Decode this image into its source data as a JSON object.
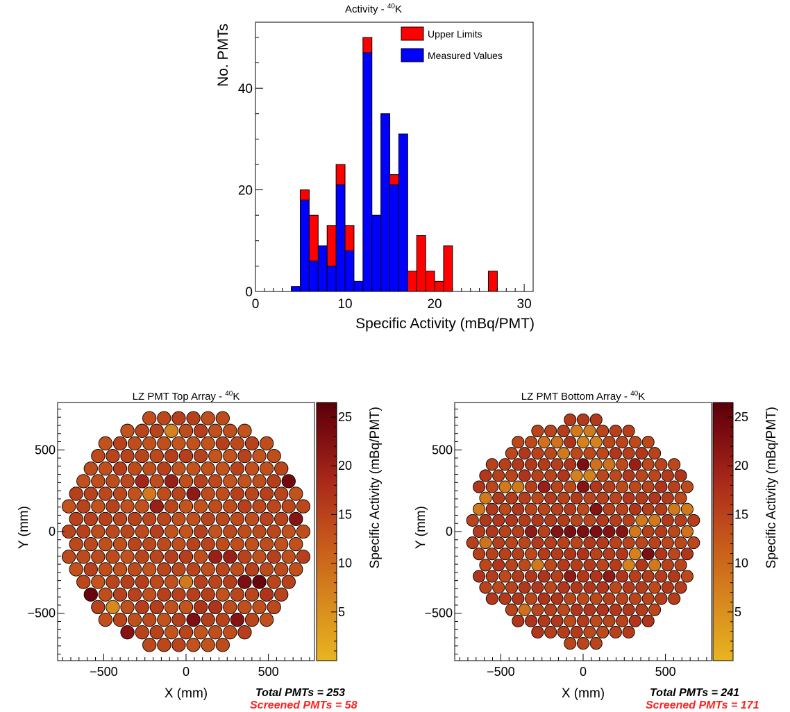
{
  "charts": [
    {
      "type": "bar",
      "stacked": true,
      "title": "Activity - ",
      "title_isotope_mass": "40",
      "title_isotope_symbol": "K",
      "xlabel": "Specific Activity (mBq/PMT)",
      "ylabel": "No. PMTs",
      "xlim": [
        0,
        31
      ],
      "ylim": [
        0,
        53
      ],
      "xticks": [
        0,
        10,
        20,
        30
      ],
      "yticks": [
        0,
        20,
        40
      ],
      "bin_width": 1,
      "legend": "top-right",
      "series": [
        {
          "name": "Measured Values",
          "color": "#0000ff",
          "bins": [
            [
              4,
              1
            ],
            [
              5,
              18
            ],
            [
              6,
              6
            ],
            [
              7,
              9
            ],
            [
              8,
              5
            ],
            [
              9,
              21
            ],
            [
              10,
              8
            ],
            [
              11,
              2
            ],
            [
              12,
              47
            ],
            [
              13,
              15
            ],
            [
              14,
              35
            ],
            [
              15,
              21
            ],
            [
              16,
              31
            ]
          ]
        },
        {
          "name": "Upper Limits",
          "color": "#ff0000",
          "bins": [
            [
              5,
              2
            ],
            [
              6,
              9
            ],
            [
              8,
              8
            ],
            [
              9,
              4
            ],
            [
              10,
              5
            ],
            [
              12,
              3
            ],
            [
              15,
              2
            ],
            [
              17,
              4
            ],
            [
              18,
              11
            ],
            [
              19,
              4
            ],
            [
              20,
              2
            ],
            [
              21,
              9
            ],
            [
              26,
              4
            ]
          ]
        }
      ]
    },
    {
      "type": "scatter",
      "title": "LZ PMT Top Array - ",
      "title_isotope_mass": "40",
      "title_isotope_symbol": "K",
      "xlabel": "X (mm)",
      "ylabel": "Y (mm)",
      "xlim": [
        -780,
        780
      ],
      "ylim": [
        -790,
        790
      ],
      "xticks": [
        -500,
        0,
        500
      ],
      "yticks": [
        -500,
        0,
        500
      ],
      "colorbar_label": "Specific Activity (mBq/PMT)",
      "colorbar_range": [
        0,
        26.5
      ],
      "colorbar_ticks": [
        5,
        10,
        15,
        20,
        25
      ],
      "layout": "hexagonal",
      "pmt_pitch_mm": 89,
      "array_radius_mm": 740,
      "total_label": "Total PMTs = 253",
      "screened_label": "Screened PMTs = 58",
      "default_activity": 14.2,
      "activities": [
        {
          "x": -622,
          "y": -410,
          "v": 25
        },
        {
          "x": 660,
          "y": 320,
          "v": 24
        },
        {
          "x": 330,
          "y": -310,
          "v": 23
        },
        {
          "x": 450,
          "y": -310,
          "v": 25
        },
        {
          "x": 660,
          "y": 80,
          "v": 22
        },
        {
          "x": 40,
          "y": 250,
          "v": 21
        },
        {
          "x": 40,
          "y": -560,
          "v": 23
        },
        {
          "x": 330,
          "y": -560,
          "v": 22
        },
        {
          "x": -400,
          "y": -600,
          "v": 22
        },
        {
          "x": 220,
          "y": -160,
          "v": 20
        },
        {
          "x": -90,
          "y": 330,
          "v": 20
        },
        {
          "x": -150,
          "y": 170,
          "v": 20
        },
        {
          "x": -250,
          "y": 330,
          "v": 19
        },
        {
          "x": -200,
          "y": 250,
          "v": 8
        },
        {
          "x": -80,
          "y": 640,
          "v": 7
        },
        {
          "x": 0,
          "y": -310,
          "v": 8
        },
        {
          "x": -470,
          "y": -470,
          "v": 6
        },
        {
          "x": -330,
          "y": -660,
          "v": 9
        },
        {
          "x": 130,
          "y": -480,
          "v": 17
        },
        {
          "x": 490,
          "y": -400,
          "v": 17
        }
      ]
    },
    {
      "type": "scatter",
      "title": "LZ PMT Bottom Array - ",
      "title_isotope_mass": "40",
      "title_isotope_symbol": "K",
      "xlabel": "X (mm)",
      "ylabel": "Y (mm)",
      "xlim": [
        -780,
        780
      ],
      "ylim": [
        -790,
        790
      ],
      "xticks": [
        -500,
        0,
        500
      ],
      "yticks": [
        -500,
        0,
        500
      ],
      "colorbar_label": "Specific Activity (mBq/PMT)",
      "colorbar_range": [
        0,
        26.5
      ],
      "colorbar_ticks": [
        5,
        10,
        15,
        20,
        25
      ],
      "layout": "hexagonal",
      "pmt_pitch_mm": 79,
      "array_radius_mm": 700,
      "total_label": "Total PMTs = 241",
      "screened_label": "Screened PMTs = 171",
      "default_activity": 15.5,
      "activities": [
        {
          "x": -160,
          "y": 0,
          "v": 22
        },
        {
          "x": -320,
          "y": 0,
          "v": 21
        },
        {
          "x": -40,
          "y": 0,
          "v": 23
        },
        {
          "x": 80,
          "y": 0,
          "v": 23
        },
        {
          "x": 200,
          "y": 0,
          "v": 22
        },
        {
          "x": 0,
          "y": 410,
          "v": 23
        },
        {
          "x": 0,
          "y": 270,
          "v": 22
        },
        {
          "x": 80,
          "y": 140,
          "v": 22
        },
        {
          "x": 400,
          "y": -140,
          "v": 23
        },
        {
          "x": -80,
          "y": -270,
          "v": 21
        },
        {
          "x": 160,
          "y": -270,
          "v": 21
        },
        {
          "x": -240,
          "y": 270,
          "v": 20
        },
        {
          "x": 320,
          "y": 410,
          "v": 20
        },
        {
          "x": 280,
          "y": -160,
          "v": 7
        },
        {
          "x": 320,
          "y": 0,
          "v": 8
        },
        {
          "x": 0,
          "y": 340,
          "v": 7
        },
        {
          "x": 40,
          "y": 550,
          "v": 7
        },
        {
          "x": -120,
          "y": 480,
          "v": 8
        },
        {
          "x": 400,
          "y": 70,
          "v": 8
        },
        {
          "x": -640,
          "y": 140,
          "v": 8
        },
        {
          "x": -600,
          "y": 210,
          "v": 8
        },
        {
          "x": -600,
          "y": -60,
          "v": 9
        },
        {
          "x": 440,
          "y": -210,
          "v": 8
        },
        {
          "x": -280,
          "y": -210,
          "v": 8
        },
        {
          "x": -440,
          "y": 270,
          "v": 8
        },
        {
          "x": 600,
          "y": 140,
          "v": 8
        },
        {
          "x": 640,
          "y": 0,
          "v": 9
        },
        {
          "x": -200,
          "y": 550,
          "v": 9
        },
        {
          "x": -360,
          "y": -480,
          "v": 9
        },
        {
          "x": 120,
          "y": 410,
          "v": 9
        },
        {
          "x": 0,
          "y": 620,
          "v": 8
        }
      ]
    }
  ]
}
